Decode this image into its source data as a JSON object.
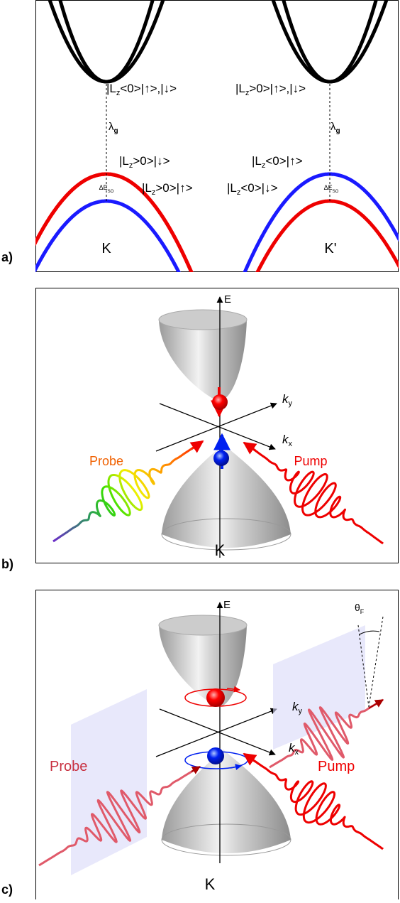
{
  "panels": [
    {
      "label": "a)",
      "texts": [
        {
          "text": "|L",
          "sub": "z",
          "tail": "<0>|↑>,|↓>"
        },
        {
          "text": "|L",
          "sub": "z",
          "tail": ">0>|↑>,|↓>"
        },
        {
          "text": "λ",
          "sub": "g"
        },
        {
          "text": "λ",
          "sub": "g"
        },
        {
          "text": "|L",
          "sub": "z",
          "tail": ">0>|↓>"
        },
        {
          "text": "|L",
          "sub": "z",
          "tail": "<0>|↑>"
        },
        {
          "text": "ΔE",
          "sub": "SO"
        },
        {
          "text": "|L",
          "sub": "z",
          "tail": ">0>|↑>"
        },
        {
          "text": "|L",
          "sub": "z",
          "tail": "<0>|↓>"
        },
        {
          "text": "ΔE",
          "sub": "SO"
        },
        {
          "text": "K"
        },
        {
          "text": "K'"
        }
      ]
    },
    {
      "label": "b)",
      "texts": [
        {
          "text": "E"
        },
        {
          "text": "k",
          "sub": "y"
        },
        {
          "text": "k",
          "sub": "x"
        },
        {
          "text": "Probe"
        },
        {
          "text": "Pump"
        },
        {
          "text": "K"
        }
      ]
    },
    {
      "label": "c)",
      "texts": [
        {
          "text": "E"
        },
        {
          "text": "θ",
          "sub": "F"
        },
        {
          "text": "k",
          "sub": "y"
        },
        {
          "text": "k",
          "sub": "x"
        },
        {
          "text": "Probe"
        },
        {
          "text": "Pump"
        },
        {
          "text": "K"
        }
      ]
    }
  ]
}
